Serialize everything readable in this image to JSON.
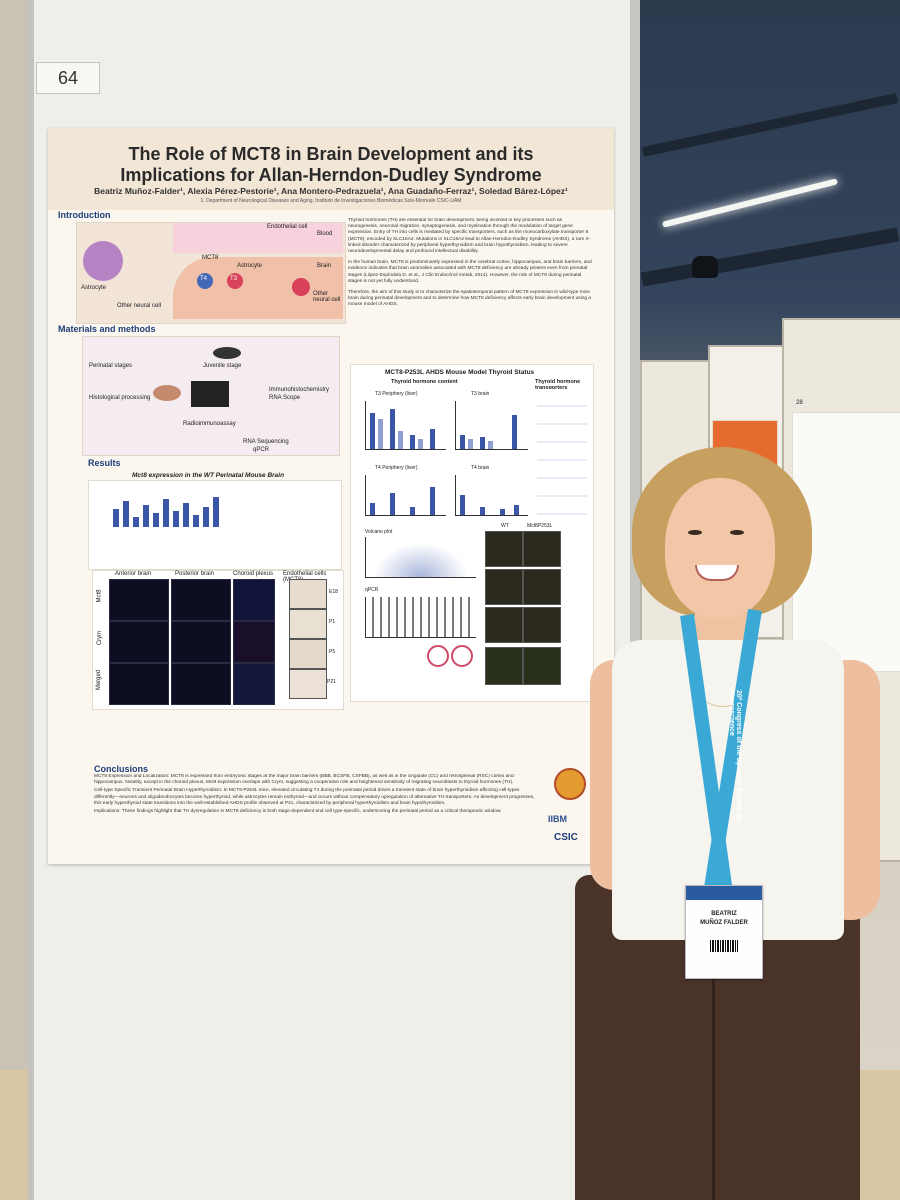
{
  "board": {
    "number": "64"
  },
  "poster": {
    "title_line1": "The Role of MCT8 in Brain Development and its",
    "title_line2": "Implications for Allan-Herndon-Dudley Syndrome",
    "authors": "Beatriz Muñoz-Falder¹, Alexia Pérez-Pestorie¹, Ana Montero-Pedrazuela¹, Ana Guadaño-Ferraz¹, Soledad Bárez-López¹",
    "affiliation": "1. Department of Neurological Diseases and Aging, Instituto de Investigaciones Biomédicas Sols-Morreale CSIC-UAM",
    "sections": {
      "introduction": "Introduction",
      "materials": "Materials and methods",
      "results": "Results",
      "conclusions": "Conclusions"
    },
    "intro_text": "Thyroid hormones (TH) are essential for brain development, being involved in key processes such as neurogenesis, neuronal migration, synaptogenesis, and myelination through the modulation of target gene expression. Entry of TH into cells is mediated by specific transporters, such as the monocarboxylate transporter 8 (MCT8), encoded by SLC16A2. Mutations in SLC16A2 lead to Allan-Herndon-Dudley Syndrome (AHDS), a rare X-linked disorder characterized by peripheral hyperthyroidism and brain hypothyroidism, leading to severe neurodevelopmental delay and profound intellectual disability.",
    "intro_text2": "In the human brain, MCT8 is predominantly expressed in the cerebral cortex, hippocampus, and brain barriers, and evidence indicates that brain anomalies associated with MCT8 deficiency are already present even from prenatal stages (López-Espíndola D. et al., J Clin Endocrinol metab, 2014). However, the role of MCT8 during perinatal stages is not yet fully understood.",
    "intro_text3": "Therefore, the aim of this study is to characterize the spatiotemporal pattern of MCT8 expression in wild-type mice brain during perinatal development and to determine how MCT8 deficiency affects early brain development using a mouse model of AHDS.",
    "intro_figure_labels": [
      "MCT8",
      "Astrocyte",
      "T4",
      "T3",
      "Blood",
      "Brain",
      "Other neural cell",
      "Endothelial cell",
      "Astrocyte",
      "Other neural cell"
    ],
    "methods_labels": [
      "Perinatal stages",
      "Juvenile stage",
      "Histological processing",
      "Immunohistochemistry",
      "RNA Scope",
      "Radioimmunoassay",
      "RNA Sequencing",
      "qPCR"
    ],
    "results_subtitle": "Mct8 expression in the WT Perinatal Mouse Brain",
    "model_title": "MCT8-P253L AHDS Mouse Model Thyroid Status",
    "model_labels": [
      "Thyroid hormone content",
      "Thyroid hormone transporters",
      "T3 Periphery (liver)",
      "T3 brain",
      "T4 Periphery (liver)",
      "T4 brain",
      "WT",
      "Mct8P253L",
      "Volcano plot",
      "qPCR"
    ],
    "brain_columns": [
      "Anterior brain",
      "Posterior brain",
      "Choroid plexus",
      "Endothelial cells (MCT8)"
    ],
    "brain_rows": [
      "Mct8",
      "Crym",
      "Merged"
    ],
    "stage_labels": [
      "E18",
      "P1",
      "P5",
      "P21"
    ],
    "conclusions_items": [
      "MCT8 Expression and Localization: MCT8 is expressed from embryonic stages at the major brain barriers (BBB, BCSFB, CSFBB), as well as in the cingulate (CC) and retrosplenial (RSC) cortex and hippocampus. Notably, except in the choroid plexus, Mct8 expression overlaps with Crym, suggesting a cooperative role and heightened sensitivity of migrating neuroblasts to thyroid hormones (TH).",
      "Cell-type Specific Transient Perinatal Brain Hyperthyroidism: In MCT8-P253L mice, elevated circulating T4 during the perinatal period drives a transient state of brain hyperthyroidism affecting cell-types differently—neurons and oligodendrocytes become hyperthyroid, while astrocytes remain euthyroid—and occurs without compensatory upregulation of alternative TH transporters. As development progresses, this early hyperthyroid state transitions into the well-established AHDS profile observed at P21, characterized by peripheral hyperthyroidism and brain hypothyroidism.",
      "Implications: These findings highlight that TH dysregulation in MCT8 deficiency is both stage-dependent and cell type-specific, underscoring the perinatal period as a critical therapeutic window."
    ],
    "logos": [
      "IIBM",
      "CSIC"
    ]
  },
  "badge": {
    "line1": "BEATRIZ",
    "line2": "MUÑOZ FALDER"
  },
  "lanyard": {
    "text": "20º Congress of the Spanish Society for Neuroscience"
  },
  "booth": {
    "number": "28"
  },
  "colors": {
    "poster_header": "#f2e6d6",
    "lanyard": "#3aa9d6",
    "pants": "#4a3329",
    "section_heading": "#1d3e7a",
    "bars": "#3b56a6"
  }
}
